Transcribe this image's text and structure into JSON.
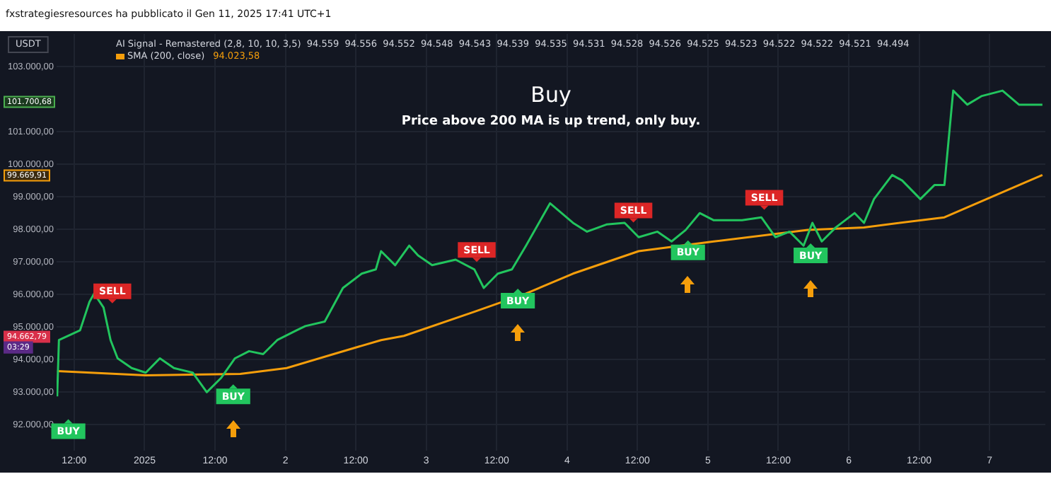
{
  "chart_data": {
    "type": "line",
    "title": "Buy",
    "subtitle": "Price above 200 MA is up trend, only buy.",
    "x": [
      "2024-12-31T09:06",
      "2024-12-31T09:24",
      "2024-12-31T13:00",
      "2024-12-31T14:36",
      "2024-12-31T15:24",
      "2024-12-31T17:00",
      "2024-12-31T18:12",
      "2024-12-31T19:24",
      "2024-12-31T21:48",
      "2025-01-01T00:12",
      "2025-01-01T02:36",
      "2025-01-01T05:00",
      "2025-01-01T08:12",
      "2025-01-01T10:36",
      "2025-01-01T13:00",
      "2025-01-01T15:24",
      "2025-01-01T17:48",
      "2025-01-01T20:12",
      "2025-01-01T22:36",
      "2025-01-02T01:54",
      "2025-01-02T03:24",
      "2025-01-02T06:42",
      "2025-01-02T09:48",
      "2025-01-02T13:00",
      "2025-01-02T15:24",
      "2025-01-02T16:18",
      "2025-01-02T18:42",
      "2025-01-02T21:06",
      "2025-01-02T22:36",
      "2025-01-03T01:00",
      "2025-01-03T05:00",
      "2025-01-03T08:12",
      "2025-01-03T09:48",
      "2025-01-03T12:12",
      "2025-01-03T14:36",
      "2025-01-03T17:00",
      "2025-01-03T21:06",
      "2025-01-04T01:00",
      "2025-01-04T03:24",
      "2025-01-04T06:42",
      "2025-01-04T09:48",
      "2025-01-04T12:12",
      "2025-01-04T15:24",
      "2025-01-04T17:48",
      "2025-01-04T20:12",
      "2025-01-04T22:36",
      "2025-01-05T01:00",
      "2025-01-05T05:48",
      "2025-01-05T09:06",
      "2025-01-05T11:30",
      "2025-01-05T13:54",
      "2025-01-05T16:18",
      "2025-01-05T17:48",
      "2025-01-05T19:24",
      "2025-01-05T21:48",
      "2025-01-06T01:00",
      "2025-01-06T02:36",
      "2025-01-06T04:18",
      "2025-01-06T07:24",
      "2025-01-06T09:06",
      "2025-01-06T12:12",
      "2025-01-06T14:36",
      "2025-01-06T16:18",
      "2025-01-06T17:48",
      "2025-01-06T20:12",
      "2025-01-06T22:36",
      "2025-01-07T02:12",
      "2025-01-07T05:00",
      "2025-01-07T09:00"
    ],
    "series": [
      {
        "color": "#22c55e",
        "values": [
          92870,
          94600,
          94900,
          95770,
          96030,
          95600,
          94600,
          94040,
          93740,
          93600,
          94040,
          93740,
          93600,
          93000,
          93430,
          94040,
          94260,
          94170,
          94600,
          94900,
          95030,
          95170,
          96200,
          96640,
          96770,
          97330,
          96900,
          97500,
          97200,
          96900,
          97070,
          96770,
          96200,
          96640,
          96770,
          97500,
          98800,
          98200,
          97930,
          98150,
          98200,
          97760,
          97930,
          97630,
          97980,
          98500,
          98280,
          98280,
          98370,
          97760,
          97930,
          97500,
          98200,
          97630,
          98060,
          98500,
          98200,
          98930,
          99670,
          99500,
          98930,
          99360,
          99360,
          102260,
          101830,
          102090,
          102260,
          101830,
          101830
        ]
      },
      {
        "name": "SMA (200, close)",
        "color": "#f59e0b",
        "x": [
          "2024-12-31T09:06",
          "2025-01-01T00:12",
          "2025-01-01T16:18",
          "2025-01-02T00:12",
          "2025-01-02T08:12",
          "2025-01-02T16:18",
          "2025-01-02T20:12",
          "2025-01-03T08:12",
          "2025-01-03T17:00",
          "2025-01-04T01:00",
          "2025-01-04T12:12",
          "2025-01-05T01:00",
          "2025-01-05T17:00",
          "2025-01-06T02:36",
          "2025-01-06T16:18",
          "2025-01-07T09:00"
        ],
        "values": [
          93650,
          93520,
          93560,
          93740,
          94170,
          94600,
          94730,
          95470,
          96030,
          96640,
          97330,
          97630,
          97980,
          98060,
          98370,
          99670
        ]
      }
    ],
    "xlim": [
      "2024-12-31T09:00",
      "2025-01-07T09:30"
    ],
    "xticks": [
      {
        "value": "2024-12-31T12:00",
        "label": "12:00"
      },
      {
        "value": "2025-01-01",
        "label": "2025"
      },
      {
        "value": "2025-01-01T12:00",
        "label": "12:00"
      },
      {
        "value": "2025-01-02",
        "label": "2"
      },
      {
        "value": "2025-01-02T12:00",
        "label": "12:00"
      },
      {
        "value": "2025-01-03",
        "label": "3"
      },
      {
        "value": "2025-01-03T12:00",
        "label": "12:00"
      },
      {
        "value": "2025-01-04",
        "label": "4"
      },
      {
        "value": "2025-01-04T12:00",
        "label": "12:00"
      },
      {
        "value": "2025-01-05",
        "label": "5"
      },
      {
        "value": "2025-01-05T12:00",
        "label": "12:00"
      },
      {
        "value": "2025-01-06",
        "label": "6"
      },
      {
        "value": "2025-01-06T12:00",
        "label": "12:00"
      },
      {
        "value": "2025-01-07",
        "label": "7"
      }
    ],
    "ylim": [
      91200,
      104000
    ],
    "yticks": [
      {
        "value": 92000,
        "label": "92.000,00"
      },
      {
        "value": 93000,
        "label": "93.000,00"
      },
      {
        "value": 94000,
        "label": "94.000,00"
      },
      {
        "value": 95000,
        "label": "95.000,00"
      },
      {
        "value": 96000,
        "label": "96.000,00"
      },
      {
        "value": 97000,
        "label": "97.000,00"
      },
      {
        "value": 98000,
        "label": "98.000,00"
      },
      {
        "value": 99000,
        "label": "99.000,00"
      },
      {
        "value": 100000,
        "label": "100.000,00"
      },
      {
        "value": 101000,
        "label": "101.000,00"
      },
      {
        "value": 103000,
        "label": "103.000,00"
      }
    ],
    "grid": true,
    "legend": "top left",
    "marker": "none",
    "line_style": "solid",
    "annotations": [
      "fxstrategiesresources ha pubblicato il Gen 11, 2025 17:41 UTC+1",
      "USDT",
      "AI Signal - Remastered (2,8, 10, 10, 3,5)  94.559  94.556  94.552  94.548  94.543  94.539  94.535  94.531  94.528  94.526  94.525  94.523  94.522  94.522  94.521  94.494",
      "94.023,58",
      "101.700,68",
      "99.669,91",
      "94.662,79",
      "03:29",
      {
        "text": "BUY",
        "x": "2024-12-31T11:00",
        "y": 91800
      },
      {
        "text": "SELL",
        "x": "2024-12-31T18:30",
        "y": 96100
      },
      {
        "text": "BUY",
        "x": "2025-01-01T15:06",
        "y": 92870
      },
      {
        "text": "SELL",
        "x": "2025-01-03T08:36",
        "y": 97370
      },
      {
        "text": "BUY",
        "x": "2025-01-03T15:36",
        "y": 95810
      },
      {
        "text": "SELL",
        "x": "2025-01-04T11:18",
        "y": 98580
      },
      {
        "text": "BUY",
        "x": "2025-01-04T20:36",
        "y": 97290
      },
      {
        "text": "SELL",
        "x": "2025-01-05T09:36",
        "y": 98970
      },
      {
        "text": "BUY",
        "x": "2025-01-05T17:30",
        "y": 97200
      }
    ]
  }
}
